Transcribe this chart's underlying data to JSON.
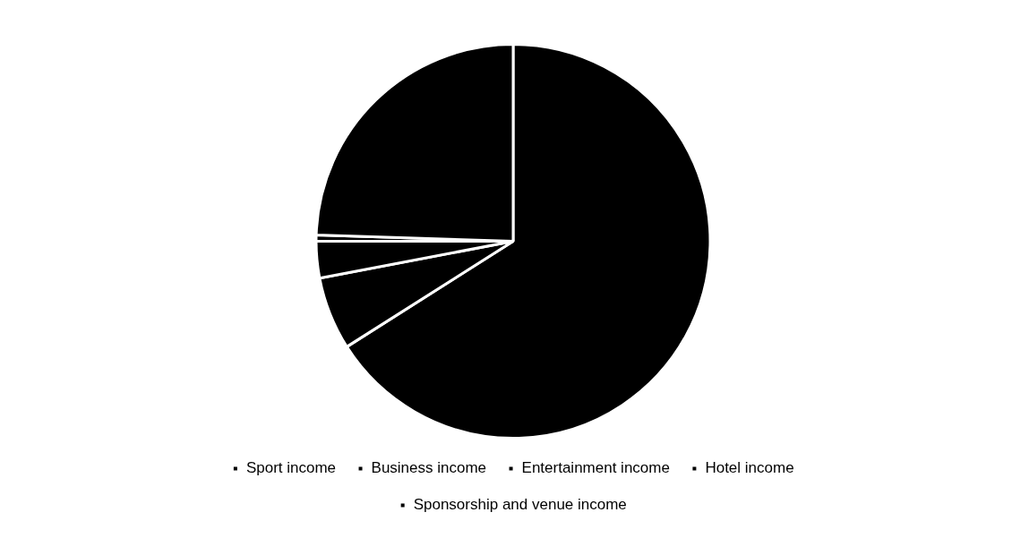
{
  "chart_data": {
    "type": "pie",
    "categories": [
      "Sport income",
      "Business income",
      "Entertainment income",
      "Hotel income",
      "Sponsorship and venue income"
    ],
    "values": [
      66,
      6,
      3,
      0.5,
      24.5
    ],
    "colors": [
      "#000000",
      "#000000",
      "#000000",
      "#000000",
      "#000000"
    ],
    "legend": "bottom"
  }
}
